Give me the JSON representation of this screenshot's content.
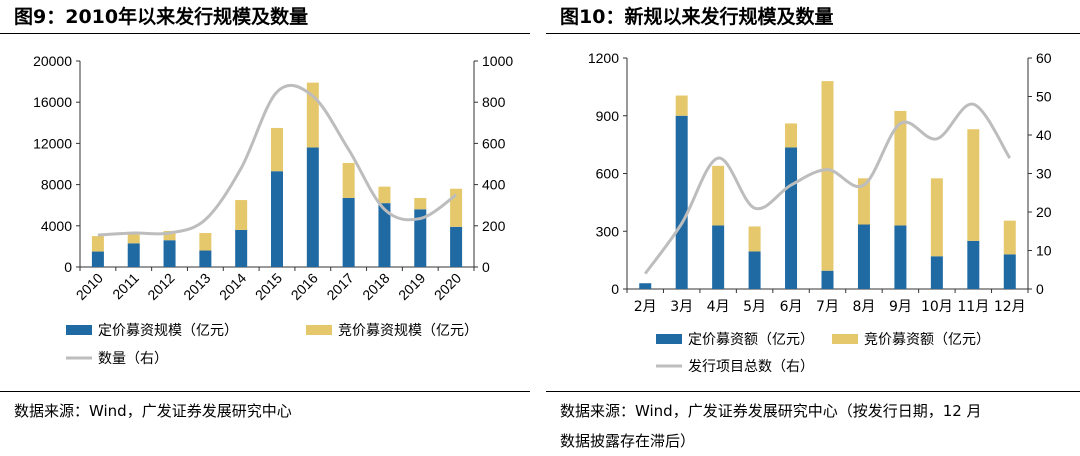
{
  "colors": {
    "fixed": "#1f6aa3",
    "bid": "#e6c86c",
    "line": "#bdbdbd"
  },
  "left": {
    "title": "图9：2010年以来发行规模及数量",
    "source": "数据来源：Wind，广发证券发展研究中心",
    "chart_data": {
      "type": "bar",
      "stacked": true,
      "categories": [
        "2010",
        "2011",
        "2012",
        "2013",
        "2014",
        "2015",
        "2016",
        "2017",
        "2018",
        "2019",
        "2020"
      ],
      "series": [
        {
          "name": "定价募资规模（亿元）",
          "axis": "left",
          "values": [
            1500,
            2300,
            2600,
            1600,
            3600,
            9300,
            11600,
            6700,
            6200,
            5600,
            3900
          ]
        },
        {
          "name": "竞价募资规模（亿元）",
          "axis": "left",
          "values": [
            1500,
            1000,
            900,
            1700,
            2900,
            4200,
            6300,
            3400,
            1600,
            1100,
            3700
          ]
        },
        {
          "name": "数量（右）",
          "axis": "right",
          "type": "line",
          "values": [
            155,
            165,
            165,
            230,
            480,
            850,
            830,
            570,
            280,
            235,
            350
          ]
        }
      ],
      "yticks_left": [
        "0",
        "4000",
        "8000",
        "12000",
        "16000",
        "20000"
      ],
      "ylim_left": [
        0,
        20000
      ],
      "yticks_right": [
        "0",
        "200",
        "400",
        "600",
        "800",
        "1000"
      ],
      "ylim_right": [
        0,
        1000
      ]
    }
  },
  "right": {
    "title": "图10：新规以来发行规模及数量",
    "source_line1": "数据来源：Wind，广发证券发展研究中心（按发行日期，12 月",
    "source_line2": "数据披露存在滞后）",
    "chart_data": {
      "type": "bar",
      "stacked": true,
      "categories": [
        "2月",
        "3月",
        "4月",
        "5月",
        "6月",
        "7月",
        "8月",
        "9月",
        "10月",
        "11月",
        "12月"
      ],
      "series": [
        {
          "name": "定价募资额（亿元）",
          "axis": "left",
          "values": [
            30,
            900,
            330,
            195,
            735,
            95,
            335,
            330,
            170,
            250,
            180
          ]
        },
        {
          "name": "竞价募资额（亿元）",
          "axis": "left",
          "values": [
            0,
            105,
            310,
            130,
            125,
            985,
            240,
            595,
            405,
            580,
            175
          ]
        },
        {
          "name": "发行项目总数（右）",
          "axis": "right",
          "type": "line",
          "values": [
            4,
            17,
            34,
            21,
            27,
            31,
            27,
            43,
            39,
            48,
            34
          ]
        }
      ],
      "yticks_left": [
        "0",
        "300",
        "600",
        "900",
        "1200"
      ],
      "ylim_left": [
        0,
        1200
      ],
      "yticks_right": [
        "0",
        "10",
        "20",
        "30",
        "40",
        "50",
        "60"
      ],
      "ylim_right": [
        0,
        60
      ]
    }
  }
}
